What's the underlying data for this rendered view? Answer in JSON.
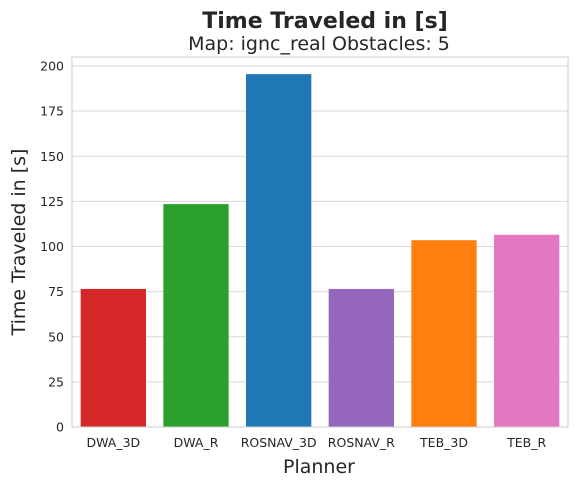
{
  "chart_data": {
    "type": "bar",
    "title": "Time Traveled in [s]",
    "subtitle": "Map: ignc_real Obstacles: 5",
    "xlabel": "Planner",
    "ylabel": "Time Traveled in [s]",
    "categories": [
      "DWA_3D",
      "DWA_R",
      "ROSNAV_3D",
      "ROSNAV_R",
      "TEB_3D",
      "TEB_R"
    ],
    "values": [
      76.5,
      123.5,
      195.5,
      76.5,
      103.5,
      106.5
    ],
    "colors": [
      "#d62728",
      "#2ca02c",
      "#1f77b4",
      "#9467bd",
      "#ff7f0e",
      "#e377c2"
    ],
    "ylim": [
      0,
      205
    ],
    "yticks": [
      0,
      25,
      50,
      75,
      100,
      125,
      150,
      175,
      200
    ],
    "grid": true
  }
}
